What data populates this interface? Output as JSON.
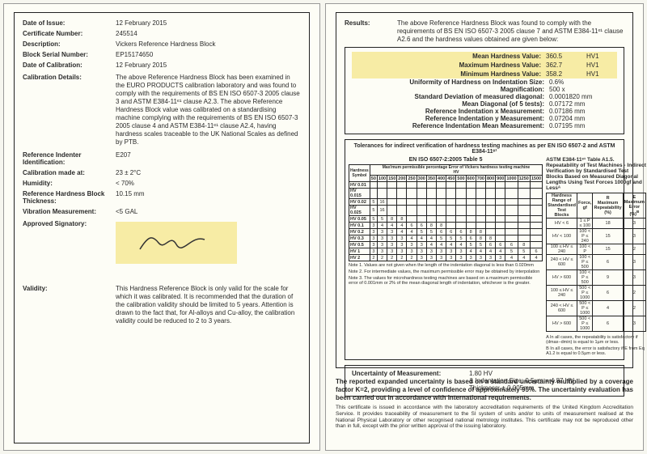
{
  "left": {
    "issue": {
      "label": "Date of Issue:",
      "value": "12 February 2015"
    },
    "certno": {
      "label": "Certificate Number:",
      "value": "245514"
    },
    "desc": {
      "label": "Description:",
      "value": "Vickers Reference Hardness Block"
    },
    "serial": {
      "label": "Block Serial Number:",
      "value": "EP15174650"
    },
    "calibdate": {
      "label": "Date of Calibration:",
      "value": "12 February 2015"
    },
    "details": {
      "label": "Calibration Details:",
      "value": "The above Reference Hardness Block has been examined in the EURO PRODUCTS calibration laboratory and was found to comply with the requirements of BS EN ISO 6507-3 2005 clause 3 and ASTM E384-11ᵉ¹ clause A2.3. The above Reference Hardness Block value was calibrated on a standardising machine complying with the requirements of BS EN ISO 6507-3 2005 clause 4 and ASTM E384-11ᵉ¹ clause A2.4, having hardness scales traceable to the UK National Scales as defined by PTB."
    },
    "indenter": {
      "label": "Reference Indenter Identification:",
      "value": "E207"
    },
    "calibat": {
      "label": "Calibration made at:",
      "value": "23 ± 2°C"
    },
    "humidity": {
      "label": "Humidity:",
      "value": "< 70%"
    },
    "thickness": {
      "label": "Reference Hardness Block Thickness:",
      "value": "10.15 mm"
    },
    "vibration": {
      "label": "Vibration Measurement:",
      "value": "<5 GAL"
    },
    "approved": {
      "label": "Approved Signatory:"
    },
    "validity": {
      "label": "Validity:",
      "value": "This Hardness Reference Block is only valid for the scale for which it was calibrated. It is recommended that the duration of the calibration validity should be limited to 5 years. Attention is drawn to the fact that, for Al-alloys and Cu-alloy, the calibration validity could be reduced to 2 to 3 years."
    }
  },
  "right": {
    "results": {
      "label": "Results:",
      "value": "The above Reference Hardness Block was found to comply with the requirements of BS EN ISO 6507-3 2005 clause 7 and ASTM E384-11ᵉ¹ clause A2.6 and the hardness values obtained are given below:"
    },
    "mean": {
      "label": "Mean Hardness Value:",
      "value": "360.5",
      "unit": "HV1"
    },
    "max": {
      "label": "Maximum Hardness Value:",
      "value": "362.7",
      "unit": "HV1"
    },
    "min": {
      "label": "Minimum Hardness Value:",
      "value": "358.2",
      "unit": "HV1"
    },
    "uni": {
      "label": "Uniformity of Hardness on Indentation Size:",
      "value": "0.6%"
    },
    "mag": {
      "label": "Magnification:",
      "value": "500 x"
    },
    "sd": {
      "label": "Standard Deviation of measured diagonal:",
      "value": "0.0001820 mm"
    },
    "meand": {
      "label": "Mean Diagonal (of 5 tests):",
      "value": "0.07172 mm"
    },
    "refx": {
      "label": "Reference Indentation x Measurement:",
      "value": "0.07186 mm"
    },
    "refy": {
      "label": "Reference Indentation y Measurement:",
      "value": "0.07204 mm"
    },
    "refm": {
      "label": "Reference Indentation Mean Measurement:",
      "value": "0.07195 mm"
    },
    "tolTitle": "Tolerances for indirect verification of hardness testing machines as per EN ISO 6507-2 and ASTM E384-11ᵉ¹",
    "tolLeftTitle": "EN ISO 6507-2:2005 Table 5",
    "tolLeftSub": "Max!mum permissible percentage Error of Vickers hardness testing machine",
    "tolRightTitle": "ASTM E384-11ᵉ¹ Table A1.5. Repeatability of Test Machines - Indirect Verification by Standardised Test Blocks Based on Measured Diagonal Lengths Using Test Forces 1000gf and Lessᴬ",
    "leftRows": [
      "HV 0.01",
      "HV 0.015",
      "HV 0.02",
      "HV 0.025",
      "HV 0.05",
      "HV 0.1",
      "HV 0.2",
      "HV 0.3",
      "HV 0.5",
      "HV 1",
      "HV 2"
    ],
    "leftCols": [
      "50",
      "100",
      "150",
      "200",
      "250",
      "300",
      "350",
      "400",
      "450",
      "500",
      "600",
      "700",
      "800",
      "900",
      "1000",
      "1250",
      "1500"
    ],
    "leftData": [
      [
        "",
        "",
        "",
        "",
        "",
        "",
        "",
        "",
        "",
        "",
        "",
        "",
        "",
        "",
        "",
        "",
        ""
      ],
      [
        "",
        "",
        "",
        "",
        "",
        "",
        "",
        "",
        "",
        "",
        "",
        "",
        "",
        "",
        "",
        "",
        ""
      ],
      [
        "5",
        "16",
        "",
        "",
        "",
        "",
        "",
        "",
        "",
        "",
        "",
        "",
        "",
        "",
        "",
        "",
        ""
      ],
      [
        "5",
        "16",
        "",
        "",
        "",
        "",
        "",
        "",
        "",
        "",
        "",
        "",
        "",
        "",
        "",
        "",
        ""
      ],
      [
        "5",
        "5",
        "8",
        "8",
        "",
        "",
        "",
        "",
        "",
        "",
        "",
        "",
        "",
        "",
        "",
        "",
        ""
      ],
      [
        "3",
        "4",
        "4",
        "4",
        "6",
        "6",
        "8",
        "8",
        "",
        "",
        "",
        "",
        "",
        "",
        "",
        "",
        ""
      ],
      [
        "3",
        "3",
        "3",
        "4",
        "4",
        "5",
        "5",
        "6",
        "6",
        "6",
        "8",
        "8",
        "",
        "",
        "",
        "",
        ""
      ],
      [
        "3",
        "3",
        "3",
        "3",
        "4",
        "4",
        "4",
        "5",
        "5",
        "5",
        "6",
        "8",
        "8",
        "",
        "",
        "",
        ""
      ],
      [
        "3",
        "3",
        "3",
        "3",
        "3",
        "3",
        "4",
        "4",
        "4",
        "4",
        "5",
        "5",
        "6",
        "6",
        "6",
        "8",
        ""
      ],
      [
        "3",
        "3",
        "3",
        "3",
        "3",
        "3",
        "3",
        "3",
        "3",
        "3",
        "4",
        "4",
        "4",
        "4",
        "5",
        "5",
        "6"
      ],
      [
        "2",
        "2",
        "2",
        "2",
        "2",
        "3",
        "3",
        "3",
        "3",
        "3",
        "3",
        "3",
        "3",
        "3",
        "4",
        "4",
        "4"
      ]
    ],
    "rightRows": [
      {
        "l": "HV < 6",
        "p": "1 ≤ P ≤ 100",
        "r": "18",
        "e": "3"
      },
      {
        "l": "HV < 100",
        "p": "100 < P ≤ 240",
        "r": "15",
        "e": "3"
      },
      {
        "l": "100 ≤ HV ≤ 240",
        "p": "100 < P",
        "r": "15",
        "e": "2"
      },
      {
        "l": "240 < HV ≤ 600",
        "p": "100 < P ≤ 500",
        "r": "6",
        "e": "3"
      },
      {
        "l": "HV > 600",
        "p": "100 < P ≤ 500",
        "r": "9",
        "e": "3"
      },
      {
        "l": "100 ≤ HV ≤ 240",
        "p": "500 < P ≤ 1000",
        "r": "6",
        "e": "2"
      },
      {
        "l": "240 < HV ≤ 600",
        "p": "500 < P ≤ 1000",
        "r": "4",
        "e": "2"
      },
      {
        "l": "HV > 600",
        "p": "500 < P ≤ 1000",
        "r": "6",
        "e": "3"
      }
    ],
    "note1": "Note 1. Values are not given when the length of the indentation diagonal is less than 0.020mm",
    "note2": "Note 2. For intermediate values, the maximum permissible error may be obtained by interpolation",
    "note3": "Note 3. The values for microhardness testing machines are based on a maximum permissible error of 0.001mm or 2% of the mean diagonal length of indentation, whichever is the greater.",
    "noteA": "A In all cases, the repeatability is satisfactory if (dmax−dmin) is equal to 1µm or less.",
    "noteB": "B In all cases, the error is satisfactory if E from Eq A1.2 is equal to 0.5µm or less.",
    "unc": {
      "label": "Uncertainty of Measurement:",
      "v1": "1.80 HV",
      "v2": "& Indentation Size: 0.5µm = 4.87 HV",
      "v3": "Thickness: ± 0.005mm"
    },
    "fbold": "The reported expanded uncertainty is based on a standard uncertainty multiplied by a coverage factor K=2, providing a level of confidence of approximately 95%. The uncertainty evaluation has been carried out in accordance with International requirements.",
    "fsm": "This certificate is issued in accordance with the laboratory accreditation requirements of the United Kingdom Accreditation Service. It provides traceability of measurement to the SI system of units and/or to units of measurement realised at the National Physical Laboratory or other recognised national metrology institutes. This certificate may not be reproduced other than in full, except with the prior written approval of the issuing laboratory."
  },
  "colors": {
    "highlight": "#f7eca5",
    "page": "#fdfdf6"
  }
}
